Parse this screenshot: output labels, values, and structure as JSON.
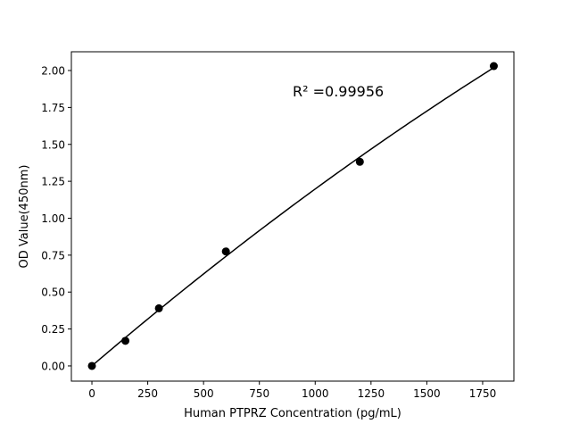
{
  "chart_data": {
    "type": "scatter",
    "title": "",
    "xlabel": "Human PTPRZ Concentration (pg/mL)",
    "ylabel": "OD Value(450nm)",
    "xlim": [
      -92,
      1890
    ],
    "ylim": [
      -0.103,
      2.127
    ],
    "grid": false,
    "x_ticks": [
      0,
      250,
      500,
      750,
      1000,
      1250,
      1500,
      1750
    ],
    "x_tick_labels": [
      "0",
      "250",
      "500",
      "750",
      "1000",
      "1250",
      "1500",
      "1750"
    ],
    "y_ticks": [
      0,
      0.25,
      0.5,
      0.75,
      1.0,
      1.25,
      1.5,
      1.75,
      2.0
    ],
    "y_tick_labels": [
      "0.00",
      "0.25",
      "0.50",
      "0.75",
      "1.00",
      "1.25",
      "1.50",
      "1.75",
      "2.00"
    ],
    "series": [
      {
        "type": "scatter",
        "x": [
          0,
          150,
          300,
          600,
          1200,
          1800
        ],
        "y": [
          0.0,
          0.17,
          0.39,
          0.775,
          1.382,
          2.03
        ],
        "color": "#000000"
      },
      {
        "type": "line",
        "fit": "polynomial",
        "color": "#000000"
      }
    ],
    "annotation": "R² =0.99956"
  }
}
